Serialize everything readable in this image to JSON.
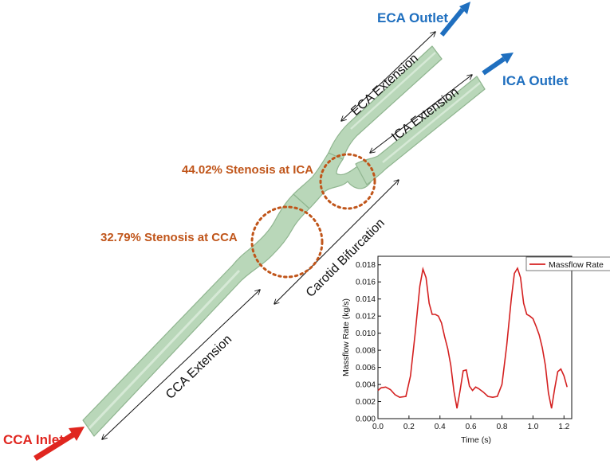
{
  "labels": {
    "eca_outlet": "ECA Outlet",
    "ica_outlet": "ICA Outlet",
    "cca_inlet": "CCA Inlet",
    "eca_extension": "ECA Extension",
    "ica_extension": "ICA Extension",
    "cca_extension": "CCA Extension",
    "carotid_bifurcation": "Carotid Bifurcation",
    "stenosis_ica": "44.02% Stenosis at ICA",
    "stenosis_cca": "32.79% Stenosis at CCA"
  },
  "colors": {
    "vessel_fill": "#b9d7b9",
    "vessel_stroke": "#8fb58f",
    "outlet_blue": "#1f6fbf",
    "inlet_red": "#e0261f",
    "stenosis_orange": "#c0551a",
    "series_red": "#d42020"
  },
  "chart_data": {
    "type": "line",
    "title": "",
    "xlabel": "Time (s)",
    "ylabel": "Massflow Rate (kg/s)",
    "xlim": [
      0.0,
      1.25
    ],
    "ylim": [
      0.0,
      0.019
    ],
    "xticks": [
      0.0,
      0.2,
      0.4,
      0.6,
      0.8,
      1.0,
      1.2
    ],
    "yticks": [
      0.0,
      0.002,
      0.004,
      0.006,
      0.008,
      0.01,
      0.012,
      0.014,
      0.016,
      0.018
    ],
    "xtick_labels": [
      "0.0",
      "0.2",
      "0.4",
      "0.6",
      "0.8",
      "1.0",
      "1.2"
    ],
    "ytick_labels": [
      "0.000",
      "0.002",
      "0.004",
      "0.006",
      "0.008",
      "0.010",
      "0.012",
      "0.014",
      "0.016",
      "0.018"
    ],
    "legend": "top-right",
    "grid": false,
    "series": [
      {
        "name": "Massflow Rate",
        "x": [
          0.0,
          0.02,
          0.05,
          0.08,
          0.11,
          0.14,
          0.18,
          0.21,
          0.24,
          0.27,
          0.29,
          0.31,
          0.33,
          0.35,
          0.37,
          0.39,
          0.41,
          0.43,
          0.45,
          0.47,
          0.49,
          0.51,
          0.53,
          0.55,
          0.57,
          0.59,
          0.61,
          0.63,
          0.65,
          0.68,
          0.71,
          0.74,
          0.77,
          0.8,
          0.83,
          0.86,
          0.88,
          0.9,
          0.92,
          0.94,
          0.96,
          0.98,
          1.0,
          1.02,
          1.04,
          1.06,
          1.08,
          1.1,
          1.12,
          1.14,
          1.16,
          1.18,
          1.2,
          1.22
        ],
        "y": [
          0.0033,
          0.0036,
          0.0037,
          0.0034,
          0.0028,
          0.0025,
          0.0026,
          0.005,
          0.01,
          0.0155,
          0.0175,
          0.0165,
          0.0135,
          0.0122,
          0.0122,
          0.012,
          0.0112,
          0.0096,
          0.0082,
          0.0062,
          0.0032,
          0.0012,
          0.0033,
          0.0056,
          0.0057,
          0.0038,
          0.0033,
          0.0037,
          0.0035,
          0.0031,
          0.0026,
          0.0025,
          0.0026,
          0.004,
          0.0085,
          0.014,
          0.017,
          0.0176,
          0.0165,
          0.0135,
          0.0122,
          0.012,
          0.0117,
          0.0108,
          0.0098,
          0.0083,
          0.0062,
          0.003,
          0.0012,
          0.0035,
          0.0055,
          0.0058,
          0.005,
          0.0037
        ]
      }
    ]
  }
}
